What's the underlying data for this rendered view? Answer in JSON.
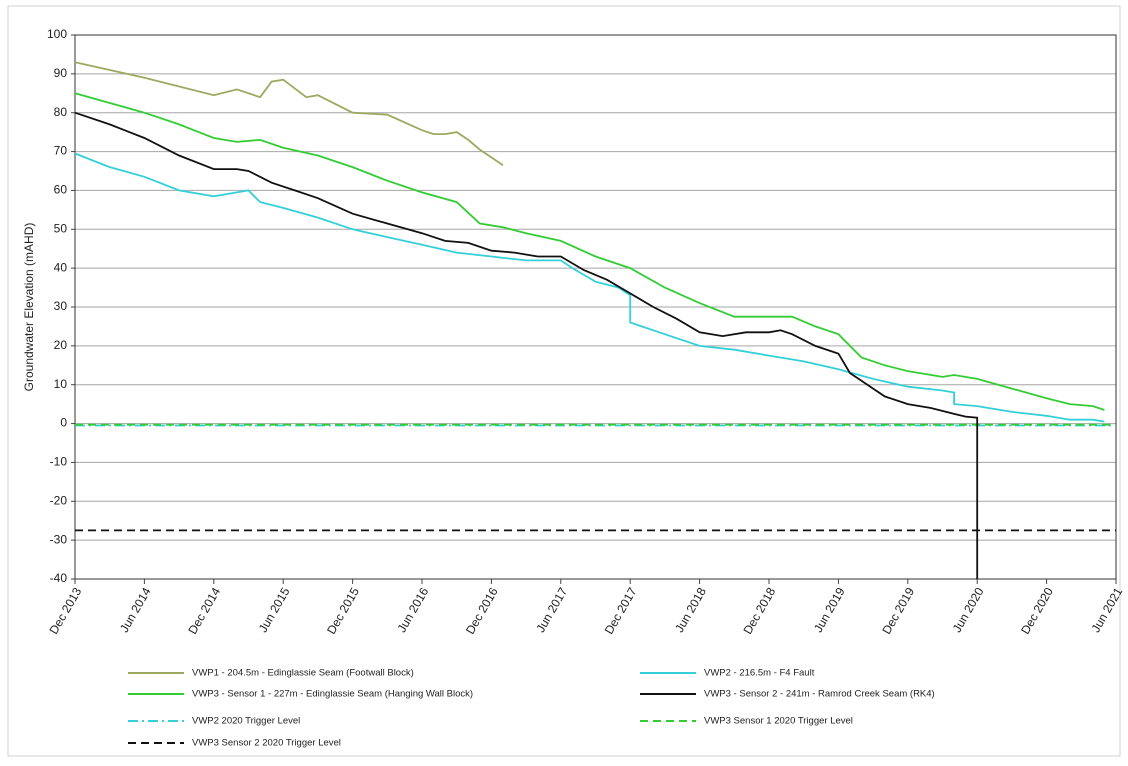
{
  "chart_data": {
    "type": "line",
    "y_label": "Groundwater Elevation (mAHD)",
    "ylim": [
      -40,
      100
    ],
    "yticks": [
      -40,
      -30,
      -20,
      -10,
      0,
      10,
      20,
      30,
      40,
      50,
      60,
      70,
      80,
      90,
      100
    ],
    "xlim": [
      "2013-12",
      "2021-06"
    ],
    "xticks": [
      {
        "value": "2013-12",
        "label": "Dec 2013"
      },
      {
        "value": "2014-06",
        "label": "Jun 2014"
      },
      {
        "value": "2014-12",
        "label": "Dec 2014"
      },
      {
        "value": "2015-06",
        "label": "Jun 2015"
      },
      {
        "value": "2015-12",
        "label": "Dec 2015"
      },
      {
        "value": "2016-06",
        "label": "Jun 2016"
      },
      {
        "value": "2016-12",
        "label": "Dec 2016"
      },
      {
        "value": "2017-06",
        "label": "Jun 2017"
      },
      {
        "value": "2017-12",
        "label": "Dec 2017"
      },
      {
        "value": "2018-06",
        "label": "Jun 2018"
      },
      {
        "value": "2018-12",
        "label": "Dec 2018"
      },
      {
        "value": "2019-06",
        "label": "Jun 2019"
      },
      {
        "value": "2019-12",
        "label": "Dec 2019"
      },
      {
        "value": "2020-06",
        "label": "Jun 2020"
      },
      {
        "value": "2020-12",
        "label": "Dec 2020"
      },
      {
        "value": "2021-06",
        "label": "Jun 2021"
      }
    ],
    "grid": true,
    "legend": "bottom",
    "series": [
      {
        "name": "VWP1 - 204.5m - Edinglassie Seam (Footwall Block)",
        "color": "#9fa860",
        "dash": "solid",
        "x": [
          "2013-12",
          "2014-06",
          "2014-12",
          "2015-02",
          "2015-04",
          "2015-05",
          "2015-06",
          "2015-08",
          "2015-09",
          "2015-12",
          "2016-03",
          "2016-06",
          "2016-07",
          "2016-08",
          "2016-09",
          "2016-10",
          "2016-11",
          "2016-12",
          "2017-01"
        ],
        "values": [
          93,
          89,
          84.5,
          86,
          84,
          88,
          88.5,
          84,
          84.5,
          80,
          79.5,
          75.5,
          74.5,
          74.5,
          75,
          73,
          70.5,
          68.5,
          66.5
        ]
      },
      {
        "name": "VWP2 - 216.5m - F4 Fault",
        "color": "#33d0d8",
        "dash": "solid",
        "x": [
          "2013-12",
          "2014-03",
          "2014-06",
          "2014-09",
          "2014-12",
          "2015-02",
          "2015-03",
          "2015-04",
          "2015-06",
          "2015-09",
          "2015-12",
          "2016-03",
          "2016-06",
          "2016-09",
          "2016-12",
          "2017-03",
          "2017-06",
          "2017-07",
          "2017-09",
          "2017-11",
          "2017-12",
          "2017-12",
          "2018-02",
          "2018-06",
          "2018-09",
          "2018-12",
          "2019-03",
          "2019-06",
          "2019-09",
          "2019-12",
          "2020-03",
          "2020-04",
          "2020-04",
          "2020-06",
          "2020-09",
          "2020-12",
          "2021-02",
          "2021-04",
          "2021-05"
        ],
        "values": [
          69.5,
          66,
          63.5,
          60,
          58.5,
          59.5,
          60,
          57,
          55.5,
          53,
          50,
          48,
          46,
          44,
          43,
          42,
          42,
          40,
          36.5,
          35,
          33,
          26,
          24,
          20,
          19,
          17.5,
          16,
          14,
          11.5,
          9.5,
          8.5,
          8,
          5,
          4.5,
          3,
          2,
          1,
          1,
          0.5
        ]
      },
      {
        "name": "VWP3 - Sensor 1 - 227m - Edinglassie Seam (Hanging Wall Block)",
        "color": "#33cc33",
        "dash": "solid",
        "x": [
          "2013-12",
          "2014-03",
          "2014-06",
          "2014-09",
          "2014-12",
          "2015-02",
          "2015-04",
          "2015-06",
          "2015-09",
          "2015-12",
          "2016-03",
          "2016-06",
          "2016-09",
          "2016-11",
          "2017-01",
          "2017-03",
          "2017-06",
          "2017-09",
          "2017-12",
          "2018-03",
          "2018-06",
          "2018-09",
          "2018-12",
          "2019-02",
          "2019-04",
          "2019-06",
          "2019-07",
          "2019-08",
          "2019-10",
          "2019-12",
          "2020-03",
          "2020-04",
          "2020-06",
          "2020-09",
          "2020-12",
          "2021-02",
          "2021-04",
          "2021-05"
        ],
        "values": [
          85,
          82.5,
          80,
          77,
          73.5,
          72.5,
          73,
          71,
          69,
          66,
          62.5,
          59.5,
          57,
          51.5,
          50.5,
          49,
          47,
          43,
          40,
          35,
          31,
          27.5,
          27.5,
          27.5,
          25,
          23,
          20,
          17,
          15,
          13.5,
          12,
          12.5,
          11.5,
          9,
          6.5,
          5,
          4.5,
          3.5
        ]
      },
      {
        "name": "VWP3 - Sensor 2 - 241m - Ramrod Creek Seam (RK4)",
        "color": "#111111",
        "dash": "solid",
        "x": [
          "2013-12",
          "2014-03",
          "2014-06",
          "2014-09",
          "2014-12",
          "2015-02",
          "2015-03",
          "2015-05",
          "2015-07",
          "2015-09",
          "2015-12",
          "2016-03",
          "2016-06",
          "2016-08",
          "2016-10",
          "2016-12",
          "2017-02",
          "2017-04",
          "2017-06",
          "2017-08",
          "2017-10",
          "2017-12",
          "2018-02",
          "2018-04",
          "2018-06",
          "2018-08",
          "2018-10",
          "2018-12",
          "2019-01",
          "2019-02",
          "2019-04",
          "2019-06",
          "2019-07",
          "2019-08",
          "2019-10",
          "2019-12",
          "2020-02",
          "2020-04",
          "2020-05",
          "2020-06",
          "2020-06"
        ],
        "values": [
          80,
          77,
          73.5,
          69,
          65.5,
          65.5,
          65,
          62,
          60,
          58,
          54,
          51.5,
          49,
          47,
          46.5,
          44.5,
          44,
          43,
          43,
          39.5,
          37,
          33.5,
          30,
          27,
          23.5,
          22.5,
          23.5,
          23.5,
          24,
          23,
          20,
          18,
          13,
          11,
          7,
          5,
          4,
          2.5,
          1.8,
          1.5,
          -40
        ]
      },
      {
        "name": "VWP2 2020 Trigger Level",
        "color": "#33d0d8",
        "dash": "dashdot",
        "x": [
          "2013-12",
          "2021-06"
        ],
        "values": [
          -0.5,
          -0.5
        ]
      },
      {
        "name": "VWP3 Sensor 1 2020 Trigger Level",
        "color": "#33cc33",
        "dash": "dash",
        "x": [
          "2013-12",
          "2021-06"
        ],
        "values": [
          -0.3,
          -0.3
        ]
      },
      {
        "name": "VWP3 Sensor 2 2020 Trigger Level",
        "color": "#111111",
        "dash": "dash",
        "x": [
          "2013-12",
          "2021-06"
        ],
        "values": [
          -27.5,
          -27.5
        ]
      }
    ]
  }
}
